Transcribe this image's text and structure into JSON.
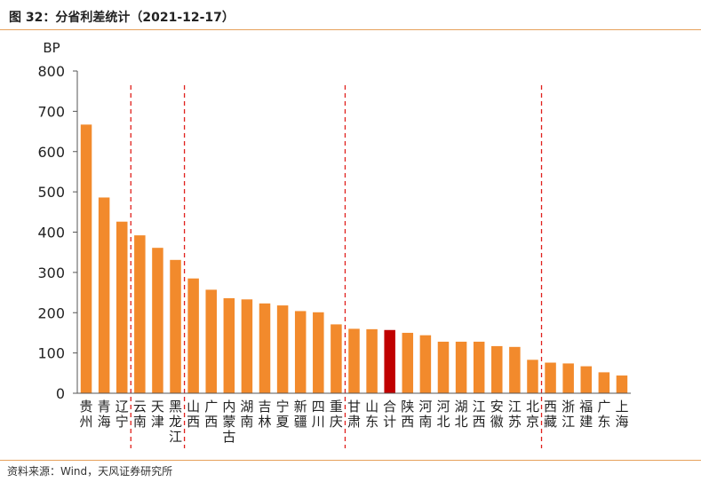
{
  "header": {
    "title": "图 32：分省利差统计（2021-12-17）"
  },
  "footer": {
    "source": "资料来源：Wind，天风证券研究所"
  },
  "chart_data": {
    "type": "bar",
    "title": "图 32：分省利差统计（2021-12-17）",
    "ylabel": "BP",
    "xlabel": "",
    "ylim": [
      0,
      800
    ],
    "yticks": [
      0,
      100,
      200,
      300,
      400,
      500,
      600,
      700,
      800
    ],
    "grid": false,
    "legend": "none",
    "colors": {
      "bar": "#f28a2c",
      "highlight": "#c00000",
      "divider": "#e0201c"
    },
    "highlight_category": "合计",
    "dividers_after_index": [
      2,
      5,
      14,
      25
    ],
    "categories": [
      "贵州",
      "青海",
      "辽宁",
      "云南",
      "天津",
      "黑龙江",
      "山西",
      "广西",
      "内蒙古",
      "湖南",
      "吉林",
      "宁夏",
      "新疆",
      "四川",
      "重庆",
      "甘肃",
      "山东",
      "合计",
      "陕西",
      "河南",
      "河北",
      "湖北",
      "江西",
      "安徽",
      "江苏",
      "北京",
      "西藏",
      "浙江",
      "福建",
      "广东",
      "上海"
    ],
    "values": [
      667,
      486,
      426,
      392,
      361,
      331,
      285,
      257,
      236,
      233,
      223,
      218,
      204,
      201,
      171,
      160,
      159,
      157,
      150,
      144,
      128,
      128,
      128,
      117,
      115,
      83,
      76,
      74,
      67,
      52,
      44
    ]
  }
}
